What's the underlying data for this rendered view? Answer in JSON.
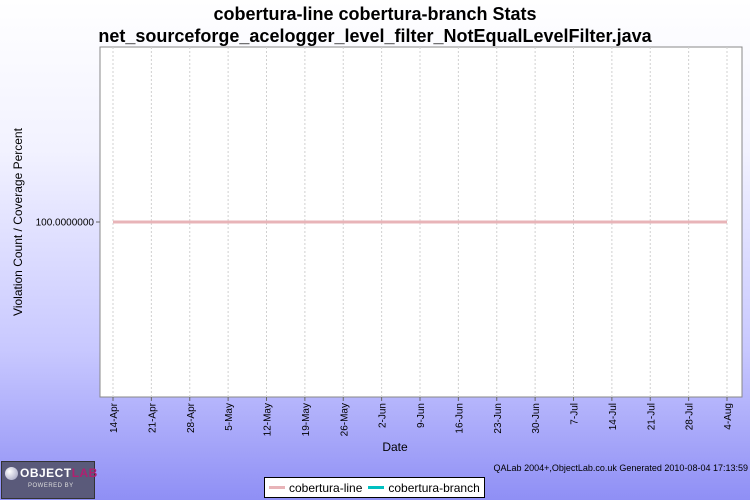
{
  "title_line1": "cobertura-line cobertura-branch  Stats",
  "title_line2": "net_sourceforge_acelogger_level_filter_NotEqualLevelFilter.java",
  "footer": "QALab 2004+,ObjectLab.co.uk  Generated 2010-08-04 17:13:59",
  "logo": {
    "brand_a": "OBJECT",
    "brand_b": "LAB",
    "tagline": "POWERED BY"
  },
  "colors": {
    "cobertura_line": "#e8b4b8",
    "cobertura_branch": "#00c0c0",
    "plot_background": "#ffffff",
    "grid": "#d0d0d0"
  },
  "chart_data": {
    "type": "line",
    "title": "cobertura-line cobertura-branch  Stats",
    "subtitle": "net_sourceforge_acelogger_level_filter_NotEqualLevelFilter.java",
    "xlabel": "Date",
    "ylabel": "Violation Count / Coverage Percent",
    "x": [
      "14-Apr",
      "21-Apr",
      "28-Apr",
      "5-May",
      "12-May",
      "19-May",
      "26-May",
      "2-Jun",
      "9-Jun",
      "16-Jun",
      "23-Jun",
      "30-Jun",
      "7-Jul",
      "14-Jul",
      "21-Jul",
      "28-Jul",
      "4-Aug"
    ],
    "y_tick_labels": [
      "100.0000000"
    ],
    "ylim": [
      0,
      200
    ],
    "grid": true,
    "legend_position": "bottom-center",
    "series": [
      {
        "name": "cobertura-line",
        "values": [
          100,
          100,
          100,
          100,
          100,
          100,
          100,
          100,
          100,
          100,
          100,
          100,
          100,
          100,
          100,
          100,
          100
        ]
      },
      {
        "name": "cobertura-branch",
        "values": [
          100,
          100,
          100,
          100,
          100,
          100,
          100,
          100,
          100,
          100,
          100,
          100,
          100,
          100,
          100,
          100,
          100
        ]
      }
    ]
  }
}
